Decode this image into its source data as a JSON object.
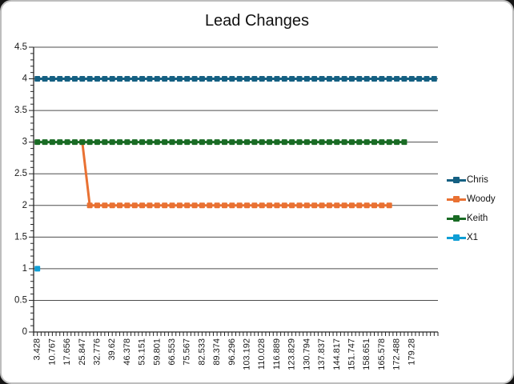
{
  "window": {
    "background": "#141414"
  },
  "chart": {
    "title": "Lead Changes",
    "background": "#ffffff",
    "border_color": "#bdbdbd",
    "text_color": "#1a1a1a",
    "axis_color": "#262626",
    "gridline_color": "#4d4d4d"
  },
  "chart_data": {
    "type": "line",
    "title": "Lead Changes",
    "xlabel": "",
    "ylabel": "",
    "ylim": [
      0,
      4.5
    ],
    "y_major_unit": 0.5,
    "y_minor_unit": 0.1,
    "y_tick_labels": [
      "0",
      "0.5",
      "1",
      "1.5",
      "2",
      "2.5",
      "3",
      "3.5",
      "4",
      "4.5"
    ],
    "grid": "horizontal-major",
    "legend_position": "right",
    "n_categories": 54,
    "x_label_interval": 2,
    "x_tick_labels": [
      "3.428",
      "10.767",
      "17.656",
      "25.847",
      "32.776",
      "39.62",
      "46.378",
      "53.151",
      "59.801",
      "66.553",
      "75.567",
      "82.533",
      "89.374",
      "96.296",
      "103.192",
      "110.028",
      "116.889",
      "123.829",
      "130.794",
      "137.837",
      "144.817",
      "151.747",
      "158.651",
      "165.578",
      "172.488",
      "179.28"
    ],
    "series": [
      {
        "name": "Chris",
        "color": "#156082",
        "segments": [
          {
            "from": 0,
            "to": 53,
            "value": 4
          }
        ]
      },
      {
        "name": "Woody",
        "color": "#E97132",
        "segments": [
          {
            "from": 6,
            "to": 6,
            "value": 3
          },
          {
            "from": 7,
            "to": 47,
            "value": 2
          }
        ]
      },
      {
        "name": "Keith",
        "color": "#196B24",
        "segments": [
          {
            "from": 0,
            "to": 49,
            "value": 3
          }
        ]
      },
      {
        "name": "X1",
        "color": "#0F9ED5",
        "segments": [
          {
            "from": 0,
            "to": 0,
            "value": 1
          }
        ]
      }
    ]
  }
}
